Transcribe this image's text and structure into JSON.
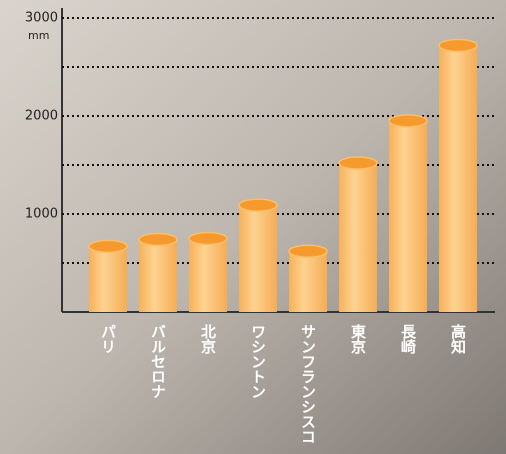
{
  "chart_data": {
    "type": "bar",
    "y_unit": "mm",
    "categories": [
      "パリ",
      "バルセロナ",
      "北京",
      "ワシントン",
      "サンフランシスコ",
      "東京",
      "長崎",
      "高知"
    ],
    "values": [
      670,
      740,
      750,
      1090,
      620,
      1520,
      1950,
      2720
    ],
    "color": "#fbbf6a",
    "top_color": "#f79a2e",
    "ylim": [
      0,
      3000
    ],
    "yticks": [
      1000,
      2000,
      3000
    ],
    "minor_yticks": [
      500,
      1500,
      2500
    ],
    "grid": true
  }
}
